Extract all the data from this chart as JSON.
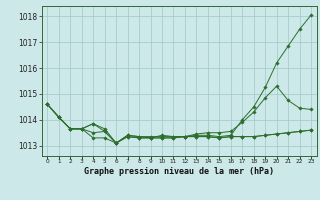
{
  "title": "Graphe pression niveau de la mer (hPa)",
  "background_color": "#cce8e8",
  "grid_color": "#a0c8c8",
  "line_color": "#2d6e2d",
  "marker_color": "#2d6e2d",
  "x_ticks": [
    0,
    1,
    2,
    3,
    4,
    5,
    6,
    7,
    8,
    9,
    10,
    11,
    12,
    13,
    14,
    15,
    16,
    17,
    18,
    19,
    20,
    21,
    22,
    23
  ],
  "ylim": [
    1012.6,
    1018.4
  ],
  "yticks": [
    1013,
    1014,
    1015,
    1016,
    1017,
    1018
  ],
  "series": [
    [
      1014.6,
      1014.1,
      1013.65,
      1013.65,
      1013.85,
      1013.65,
      1013.1,
      1013.4,
      1013.35,
      1013.3,
      1013.4,
      1013.35,
      1013.35,
      1013.4,
      1013.4,
      1013.35,
      1013.4,
      1014.0,
      1014.5,
      1015.25,
      1016.2,
      1016.85,
      1017.5,
      1018.05
    ],
    [
      1014.6,
      1014.1,
      1013.65,
      1013.65,
      1013.5,
      1013.55,
      1013.1,
      1013.35,
      1013.3,
      1013.3,
      1013.3,
      1013.3,
      1013.35,
      1013.35,
      1013.35,
      1013.3,
      1013.35,
      1013.35,
      1013.35,
      1013.4,
      1013.45,
      1013.5,
      1013.55,
      1013.6
    ],
    [
      1014.6,
      1014.1,
      1013.65,
      1013.65,
      1013.85,
      1013.55,
      1013.1,
      1013.4,
      1013.35,
      1013.35,
      1013.35,
      1013.35,
      1013.35,
      1013.45,
      1013.5,
      1013.5,
      1013.55,
      1013.9,
      1014.3,
      1014.85,
      1015.3,
      1014.75,
      1014.45,
      1014.4
    ],
    [
      1014.6,
      1014.1,
      1013.65,
      1013.65,
      1013.3,
      1013.3,
      1013.1,
      1013.35,
      1013.3,
      1013.3,
      1013.3,
      1013.3,
      1013.35,
      1013.35,
      1013.35,
      1013.3,
      1013.35,
      1013.35,
      1013.35,
      1013.4,
      1013.45,
      1013.5,
      1013.55,
      1013.6
    ]
  ],
  "figsize": [
    3.2,
    2.0
  ],
  "dpi": 100,
  "title_fontsize": 6.0,
  "ytick_fontsize": 5.5,
  "xtick_fontsize": 4.2
}
